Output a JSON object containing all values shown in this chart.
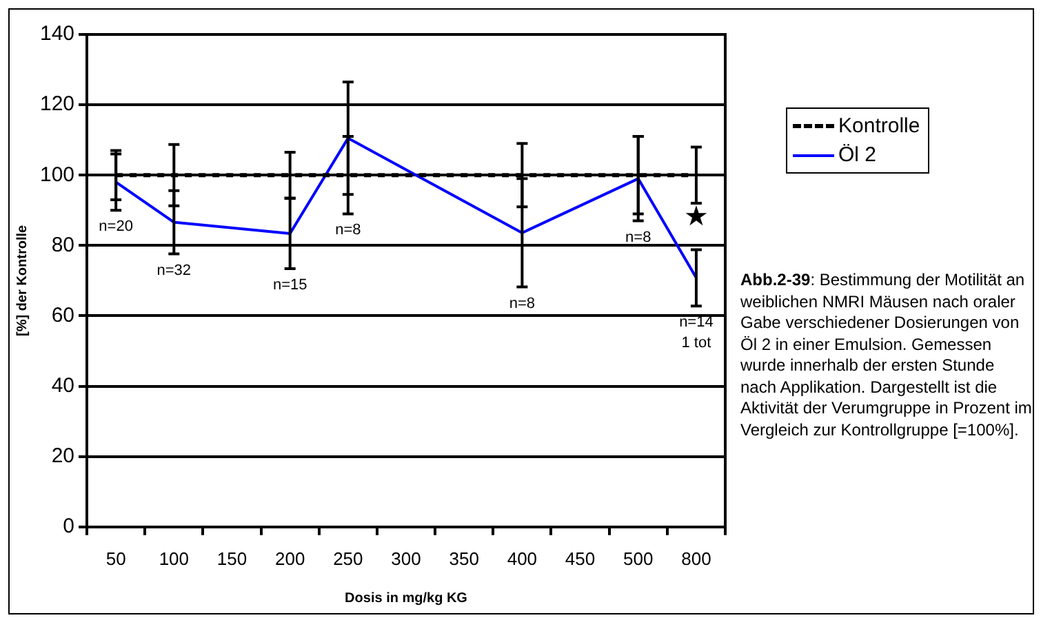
{
  "chart_data": {
    "type": "line",
    "xlabel": "Dosis in mg/kg KG",
    "ylabel": "[%] der Kontrolle",
    "categories": [
      "50",
      "100",
      "150",
      "200",
      "250",
      "300",
      "350",
      "400",
      "450",
      "500",
      "800"
    ],
    "series": [
      {
        "name": "Kontrolle",
        "color": "#000000",
        "line_style": "dashed",
        "values": [
          100,
          100,
          null,
          100,
          100,
          null,
          null,
          100,
          null,
          100,
          100
        ],
        "errors": [
          7,
          8.7,
          null,
          6.5,
          11,
          null,
          null,
          9,
          null,
          11,
          8
        ]
      },
      {
        "name": "Öl 2",
        "color": "#0000ff",
        "line_style": "solid",
        "values": [
          98,
          86.6,
          null,
          83.4,
          110.5,
          null,
          null,
          83.6,
          null,
          99,
          70.8
        ],
        "errors": [
          8,
          9,
          null,
          10,
          16,
          null,
          null,
          15.4,
          null,
          12,
          8
        ]
      }
    ],
    "ylim": [
      0,
      140
    ],
    "yticks": [
      0,
      20,
      40,
      60,
      80,
      100,
      120,
      140
    ],
    "grid": "y",
    "legend": "right",
    "marker": "none",
    "annotations": [
      "n=20",
      "n=32",
      "n=15",
      "n=8",
      "n=8",
      "n=8",
      "n=14",
      "1 tot",
      "★",
      "Abb.2-39",
      ": Bestimmung der Motilität an weiblichen NMRI Mäusen nach oraler Gabe verschiedener Dosierungen von Öl 2 in einer Emulsion. Gemessen wurde innerhalb der ersten Stunde nach Applikation. Dargestellt ist die Aktivität der Verumgruppe in Prozent im Vergleich zur Kontrollgruppe [=100%]."
    ]
  }
}
